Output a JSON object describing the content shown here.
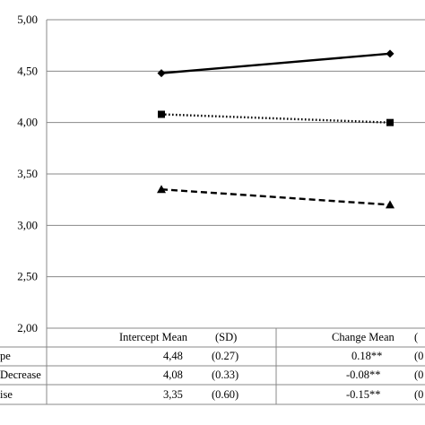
{
  "chart_data": {
    "type": "line",
    "ylim": [
      2.0,
      5.0
    ],
    "y_ticks": [
      "2,00",
      "2,50",
      "3,00",
      "3,50",
      "4,00",
      "4,50",
      "5,00"
    ],
    "y_tick_values": [
      2.0,
      2.5,
      3.0,
      3.5,
      4.0,
      4.5,
      5.0
    ],
    "x_positions": [
      0,
      1
    ],
    "grid": true,
    "series": [
      {
        "values": [
          4.48,
          4.67
        ],
        "marker": "diamond",
        "line_style": "solid"
      },
      {
        "values": [
          4.08,
          4.0
        ],
        "marker": "square",
        "line_style": "dotted"
      },
      {
        "values": [
          3.35,
          3.2
        ],
        "marker": "triangle",
        "line_style": "dashed"
      }
    ]
  },
  "table": {
    "headers": {
      "intercept_mean": "Intercept Mean",
      "intercept_sd": "(SD)",
      "change_mean": "Change Mean",
      "change_sd": "("
    },
    "rows": [
      {
        "group": "pe",
        "intercept": "4,48",
        "intercept_sd": "(0.27)",
        "change": "0.18**",
        "change_sd": "(0"
      },
      {
        "group": "Decrease",
        "intercept": "4,08",
        "intercept_sd": "(0.33)",
        "change": "-0.08**",
        "change_sd": "(0"
      },
      {
        "group": "ise",
        "intercept": "3,35",
        "intercept_sd": "(0.60)",
        "change": "-0.15**",
        "change_sd": "(0"
      }
    ]
  }
}
